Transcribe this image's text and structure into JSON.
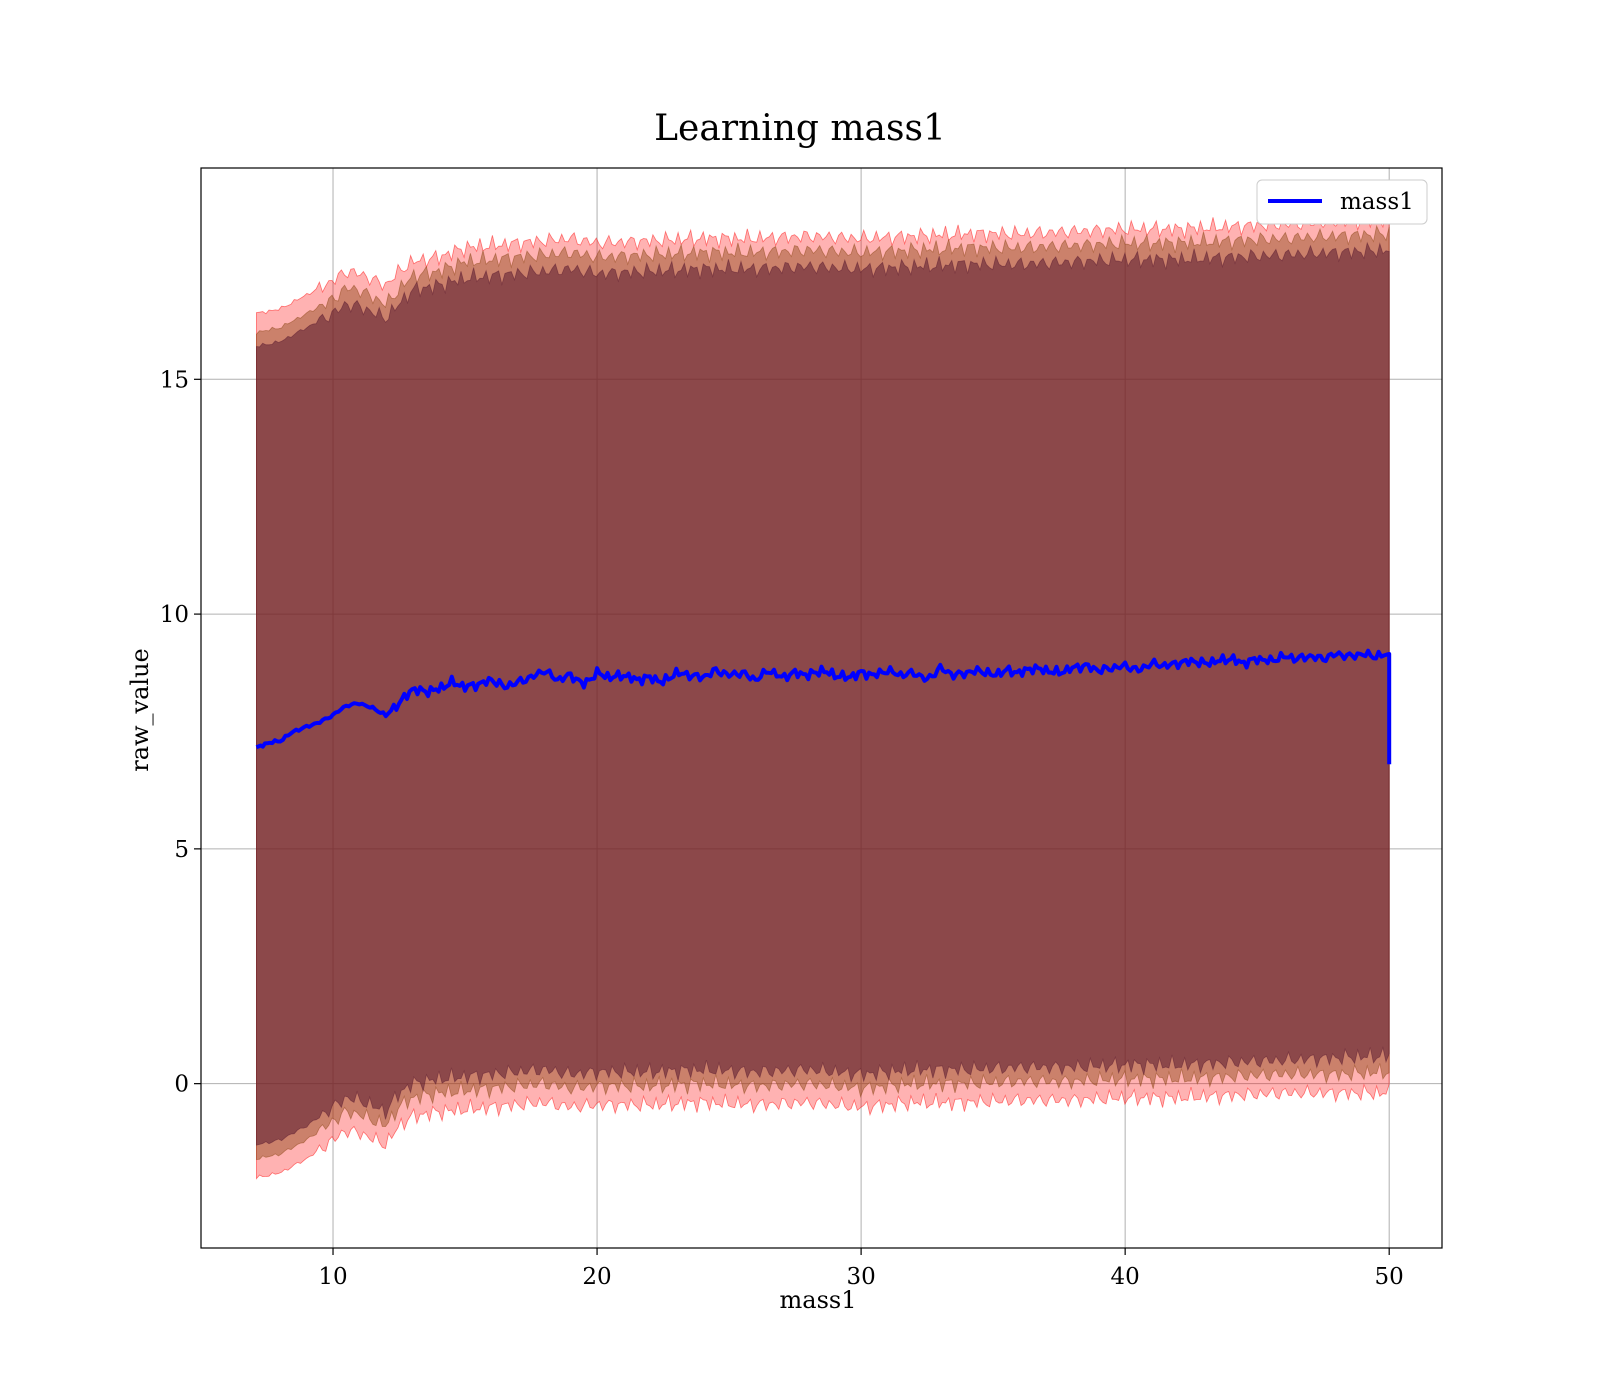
{
  "chart_data": {
    "type": "line",
    "title": "Learning mass1",
    "xlabel": "mass1",
    "ylabel": "raw_value",
    "xlim": [
      5,
      52
    ],
    "ylim": [
      -3.5,
      19.5
    ],
    "xticks": [
      10,
      20,
      30,
      40,
      50
    ],
    "yticks": [
      0,
      5,
      10,
      15
    ],
    "grid": true,
    "legend_position": "top-right",
    "series": [
      {
        "name": "mass1",
        "color": "#0000ff",
        "x": [
          7.1,
          7.5,
          8,
          8.5,
          9,
          9.5,
          10,
          10.5,
          11,
          11.5,
          12,
          12.5,
          13,
          13.5,
          14,
          14.5,
          15,
          15.5,
          16,
          16.5,
          17,
          17.5,
          18,
          18.5,
          19,
          19.5,
          20,
          20.5,
          21,
          21.5,
          22,
          22.5,
          23,
          23.5,
          24,
          24.5,
          25,
          25.5,
          26,
          26.5,
          27,
          27.5,
          28,
          28.5,
          29,
          29.5,
          30,
          30.5,
          31,
          31.5,
          32,
          32.5,
          33,
          33.5,
          34,
          34.5,
          35,
          35.5,
          36,
          36.5,
          37,
          37.5,
          38,
          38.5,
          39,
          39.5,
          40,
          40.5,
          41,
          41.5,
          42,
          42.5,
          43,
          43.5,
          44,
          44.5,
          45,
          45.5,
          46,
          46.5,
          47,
          47.5,
          48,
          48.5,
          49,
          49.5,
          50,
          50
        ],
        "values": [
          7.15,
          7.25,
          7.3,
          7.5,
          7.6,
          7.7,
          7.85,
          8.05,
          8.1,
          8.0,
          7.85,
          8.1,
          8.4,
          8.35,
          8.4,
          8.55,
          8.45,
          8.5,
          8.6,
          8.45,
          8.55,
          8.65,
          8.8,
          8.6,
          8.7,
          8.5,
          8.75,
          8.65,
          8.7,
          8.6,
          8.65,
          8.55,
          8.75,
          8.7,
          8.65,
          8.8,
          8.7,
          8.75,
          8.6,
          8.8,
          8.65,
          8.75,
          8.7,
          8.8,
          8.7,
          8.65,
          8.75,
          8.7,
          8.8,
          8.7,
          8.75,
          8.6,
          8.85,
          8.7,
          8.75,
          8.8,
          8.7,
          8.8,
          8.75,
          8.85,
          8.8,
          8.75,
          8.85,
          8.9,
          8.8,
          8.85,
          8.9,
          8.8,
          8.95,
          8.9,
          8.95,
          9.0,
          8.95,
          9.0,
          9.05,
          8.95,
          9.05,
          9.0,
          9.1,
          9.05,
          9.1,
          9.05,
          9.15,
          9.1,
          9.15,
          9.1,
          9.15,
          6.8
        ]
      }
    ],
    "bands": [
      {
        "color": "#ff0000",
        "opacity": 0.3,
        "x": [
          7.1,
          8,
          9,
          10,
          10.5,
          11,
          12,
          12.5,
          13,
          14,
          15,
          16,
          17,
          18,
          19,
          20,
          22,
          24,
          26,
          28,
          30,
          32,
          34,
          36,
          38,
          40,
          42,
          44,
          46,
          48,
          50
        ],
        "upper": [
          16.4,
          16.5,
          16.8,
          17.1,
          17.3,
          17.25,
          17.0,
          17.3,
          17.5,
          17.6,
          17.8,
          17.85,
          17.9,
          17.95,
          18.0,
          17.9,
          17.95,
          18.0,
          18.0,
          18.05,
          18.0,
          18.05,
          18.1,
          18.1,
          18.15,
          18.2,
          18.2,
          18.25,
          18.3,
          18.35,
          18.4
        ],
        "lower": [
          -2.0,
          -1.9,
          -1.6,
          -1.2,
          -1.0,
          -1.05,
          -1.3,
          -0.9,
          -0.7,
          -0.6,
          -0.55,
          -0.5,
          -0.45,
          -0.4,
          -0.5,
          -0.45,
          -0.45,
          -0.4,
          -0.45,
          -0.4,
          -0.5,
          -0.4,
          -0.4,
          -0.35,
          -0.35,
          -0.3,
          -0.3,
          -0.25,
          -0.2,
          -0.2,
          -0.2
        ]
      },
      {
        "color": "#8b4513",
        "opacity": 0.45,
        "x": [
          7.1,
          8,
          9,
          10,
          10.5,
          11,
          12,
          12.5,
          13,
          14,
          15,
          16,
          17,
          18,
          19,
          20,
          22,
          24,
          26,
          28,
          30,
          32,
          34,
          36,
          38,
          40,
          42,
          44,
          46,
          48,
          50
        ],
        "upper": [
          16.0,
          16.1,
          16.4,
          16.7,
          16.95,
          16.9,
          16.6,
          16.9,
          17.2,
          17.3,
          17.5,
          17.55,
          17.6,
          17.65,
          17.7,
          17.6,
          17.65,
          17.7,
          17.7,
          17.75,
          17.7,
          17.75,
          17.8,
          17.8,
          17.85,
          17.9,
          17.9,
          17.95,
          18.0,
          18.05,
          18.1
        ],
        "lower": [
          -1.6,
          -1.5,
          -1.2,
          -0.8,
          -0.6,
          -0.65,
          -0.9,
          -0.5,
          -0.3,
          -0.2,
          -0.15,
          -0.1,
          -0.05,
          0.0,
          -0.1,
          -0.05,
          -0.05,
          0.0,
          -0.05,
          0.0,
          -0.1,
          0.0,
          0.0,
          0.05,
          0.05,
          0.1,
          0.1,
          0.15,
          0.2,
          0.2,
          0.25
        ]
      },
      {
        "color": "#5a1a30",
        "opacity": 0.55,
        "x": [
          7.1,
          8,
          9,
          10,
          10.5,
          11,
          12,
          12.5,
          13,
          14,
          15,
          16,
          17,
          18,
          19,
          20,
          22,
          24,
          26,
          28,
          30,
          32,
          34,
          36,
          38,
          40,
          42,
          44,
          46,
          48,
          50
        ],
        "upper": [
          15.7,
          15.8,
          16.1,
          16.4,
          16.6,
          16.55,
          16.3,
          16.6,
          16.9,
          17.0,
          17.15,
          17.2,
          17.25,
          17.3,
          17.35,
          17.25,
          17.3,
          17.35,
          17.35,
          17.4,
          17.35,
          17.4,
          17.45,
          17.45,
          17.5,
          17.55,
          17.55,
          17.6,
          17.65,
          17.7,
          17.75
        ],
        "lower": [
          -1.3,
          -1.2,
          -0.9,
          -0.5,
          -0.3,
          -0.35,
          -0.6,
          -0.2,
          0.0,
          0.1,
          0.15,
          0.2,
          0.25,
          0.3,
          0.2,
          0.25,
          0.25,
          0.3,
          0.25,
          0.3,
          0.2,
          0.3,
          0.3,
          0.35,
          0.35,
          0.4,
          0.4,
          0.45,
          0.5,
          0.55,
          0.6
        ]
      }
    ]
  }
}
